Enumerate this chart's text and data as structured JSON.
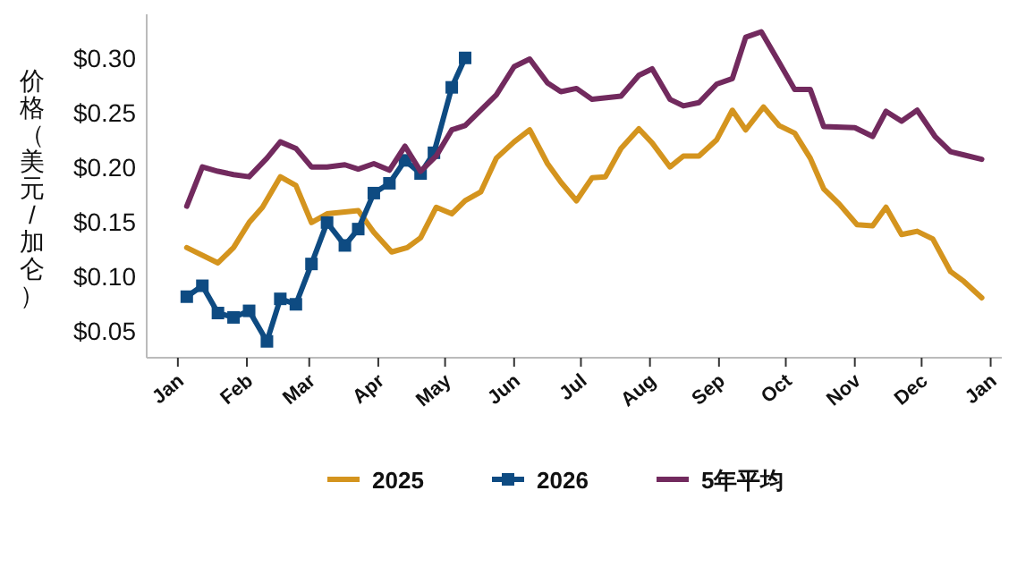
{
  "chart_data": {
    "type": "line",
    "ylabel": "价格（美元/加仑）",
    "xlim": [
      "2024-12-18",
      "2026-01-06"
    ],
    "ylim": [
      0.025,
      0.34
    ],
    "xticks": [
      {
        "value": "2025-01-01",
        "label": "Jan"
      },
      {
        "value": "2025-02-01",
        "label": "Feb"
      },
      {
        "value": "2025-03-01",
        "label": "Mar"
      },
      {
        "value": "2025-04-01",
        "label": "Apr"
      },
      {
        "value": "2025-05-01",
        "label": "May"
      },
      {
        "value": "2025-06-01",
        "label": "Jun"
      },
      {
        "value": "2025-07-01",
        "label": "Jul"
      },
      {
        "value": "2025-08-01",
        "label": "Aug"
      },
      {
        "value": "2025-09-01",
        "label": "Sep"
      },
      {
        "value": "2025-10-01",
        "label": "Oct"
      },
      {
        "value": "2025-11-01",
        "label": "Nov"
      },
      {
        "value": "2025-12-01",
        "label": "Dec"
      },
      {
        "value": "2026-01-01",
        "label": "Jan"
      }
    ],
    "yticks": [
      {
        "value": 0.05,
        "label": "$0.05"
      },
      {
        "value": 0.1,
        "label": "$0.10"
      },
      {
        "value": 0.15,
        "label": "$0.15"
      },
      {
        "value": 0.2,
        "label": "$0.20"
      },
      {
        "value": 0.25,
        "label": "$0.25"
      },
      {
        "value": 0.3,
        "label": "$0.30"
      }
    ],
    "grid": false,
    "legend": "bottom",
    "series": [
      {
        "name": "2025",
        "color": "#d4941e",
        "marker": "none",
        "x": [
          "2025-01-05",
          "2025-01-19",
          "2025-01-26",
          "2025-02-02",
          "2025-02-08",
          "2025-02-16",
          "2025-02-23",
          "2025-03-02",
          "2025-03-09",
          "2025-03-23",
          "2025-03-30",
          "2025-04-07",
          "2025-04-14",
          "2025-04-20",
          "2025-04-27",
          "2025-05-04",
          "2025-05-10",
          "2025-05-17",
          "2025-05-24",
          "2025-06-01",
          "2025-06-08",
          "2025-06-16",
          "2025-06-22",
          "2025-06-29",
          "2025-07-06",
          "2025-07-12",
          "2025-07-19",
          "2025-07-27",
          "2025-08-02",
          "2025-08-10",
          "2025-08-16",
          "2025-08-23",
          "2025-08-31",
          "2025-09-07",
          "2025-09-13",
          "2025-09-21",
          "2025-09-28",
          "2025-10-05",
          "2025-10-12",
          "2025-10-18",
          "2025-10-25",
          "2025-11-02",
          "2025-11-09",
          "2025-11-15",
          "2025-11-22",
          "2025-11-29",
          "2025-12-06",
          "2025-12-14",
          "2025-12-20",
          "2025-12-28"
        ],
        "values": [
          0.126,
          0.112,
          0.126,
          0.149,
          0.163,
          0.191,
          0.183,
          0.149,
          0.157,
          0.16,
          0.14,
          0.122,
          0.126,
          0.135,
          0.163,
          0.157,
          0.169,
          0.177,
          0.208,
          0.223,
          0.234,
          0.203,
          0.186,
          0.169,
          0.19,
          0.191,
          0.217,
          0.235,
          0.222,
          0.2,
          0.21,
          0.21,
          0.225,
          0.252,
          0.234,
          0.255,
          0.238,
          0.231,
          0.208,
          0.18,
          0.166,
          0.147,
          0.146,
          0.163,
          0.138,
          0.141,
          0.134,
          0.104,
          0.095,
          0.08
        ]
      },
      {
        "name": "2026",
        "color": "#0e4b82",
        "marker": "square",
        "x": [
          "2025-01-05",
          "2025-01-12",
          "2025-01-19",
          "2025-01-26",
          "2025-02-02",
          "2025-02-10",
          "2025-02-16",
          "2025-02-23",
          "2025-03-02",
          "2025-03-09",
          "2025-03-17",
          "2025-03-23",
          "2025-03-30",
          "2025-04-06",
          "2025-04-13",
          "2025-04-20",
          "2025-04-26",
          "2025-05-04",
          "2025-05-10"
        ],
        "values": [
          0.081,
          0.091,
          0.066,
          0.062,
          0.068,
          0.04,
          0.079,
          0.074,
          0.111,
          0.149,
          0.128,
          0.143,
          0.176,
          0.185,
          0.206,
          0.194,
          0.213,
          0.273,
          0.3
        ]
      },
      {
        "name": "5年平均",
        "color": "#722a5e",
        "marker": "none",
        "x": [
          "2025-01-05",
          "2025-01-12",
          "2025-01-19",
          "2025-01-26",
          "2025-02-02",
          "2025-02-10",
          "2025-02-16",
          "2025-02-23",
          "2025-03-02",
          "2025-03-09",
          "2025-03-17",
          "2025-03-23",
          "2025-03-30",
          "2025-04-06",
          "2025-04-13",
          "2025-04-20",
          "2025-04-27",
          "2025-05-04",
          "2025-05-10",
          "2025-05-24",
          "2025-06-01",
          "2025-06-08",
          "2025-06-16",
          "2025-06-22",
          "2025-06-29",
          "2025-07-06",
          "2025-07-19",
          "2025-07-27",
          "2025-08-02",
          "2025-08-10",
          "2025-08-16",
          "2025-08-23",
          "2025-08-31",
          "2025-09-07",
          "2025-09-13",
          "2025-09-20",
          "2025-09-28",
          "2025-10-05",
          "2025-10-12",
          "2025-10-18",
          "2025-11-01",
          "2025-11-09",
          "2025-11-15",
          "2025-11-22",
          "2025-11-29",
          "2025-12-07",
          "2025-12-14",
          "2025-12-20",
          "2025-12-28"
        ],
        "values": [
          0.164,
          0.2,
          0.196,
          0.193,
          0.191,
          0.208,
          0.223,
          0.217,
          0.2,
          0.2,
          0.202,
          0.198,
          0.203,
          0.197,
          0.219,
          0.196,
          0.21,
          0.234,
          0.238,
          0.266,
          0.292,
          0.299,
          0.277,
          0.269,
          0.272,
          0.262,
          0.265,
          0.284,
          0.29,
          0.262,
          0.256,
          0.259,
          0.276,
          0.281,
          0.319,
          0.324,
          0.296,
          0.271,
          0.271,
          0.237,
          0.236,
          0.228,
          0.251,
          0.242,
          0.252,
          0.228,
          0.214,
          0.211,
          0.207
        ]
      }
    ]
  }
}
